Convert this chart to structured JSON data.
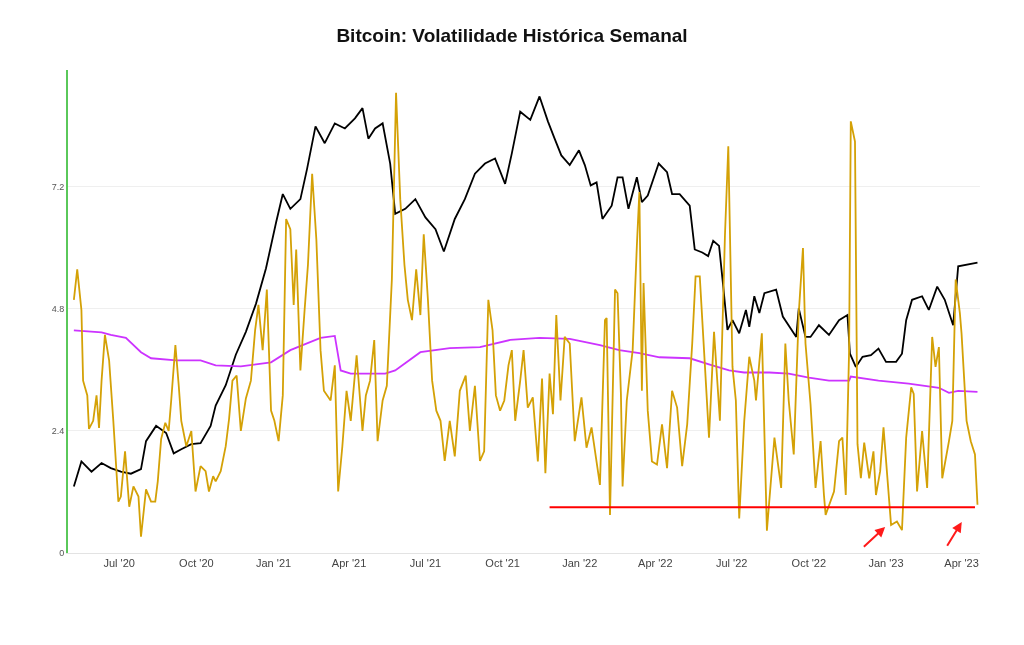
{
  "chart_data": {
    "type": "line",
    "title": "Bitcoin: Volatilidade Histórica Semanal",
    "xlim": [
      "2020-05-01",
      "2023-04-23"
    ],
    "ylim": [
      0,
      9.5
    ],
    "yticks": [
      0,
      2.4,
      4.8,
      7.2
    ],
    "grid": "y",
    "xticks": [
      {
        "value": "2020-07-01",
        "label": "Jul '20"
      },
      {
        "value": "2020-10-01",
        "label": "Oct '20"
      },
      {
        "value": "2021-01-01",
        "label": "Jan '21"
      },
      {
        "value": "2021-04-01",
        "label": "Apr '21"
      },
      {
        "value": "2021-07-01",
        "label": "Jul '21"
      },
      {
        "value": "2021-10-01",
        "label": "Oct '21"
      },
      {
        "value": "2022-01-01",
        "label": "Jan '22"
      },
      {
        "value": "2022-04-01",
        "label": "Apr '22"
      },
      {
        "value": "2022-07-01",
        "label": "Jul '22"
      },
      {
        "value": "2022-10-01",
        "label": "Oct '22"
      },
      {
        "value": "2023-01-01",
        "label": "Jan '23"
      },
      {
        "value": "2023-04-01",
        "label": "Apr '23"
      }
    ],
    "series": [
      {
        "color": "#000000",
        "x": [
          "2020-05-08",
          "2020-05-17",
          "2020-05-29",
          "2020-06-10",
          "2020-06-21",
          "2020-07-03",
          "2020-07-15",
          "2020-07-27",
          "2020-08-02",
          "2020-08-14",
          "2020-08-26",
          "2020-09-04",
          "2020-09-13",
          "2020-09-25",
          "2020-10-06",
          "2020-10-18",
          "2020-10-24",
          "2020-11-05",
          "2020-11-17",
          "2020-11-29",
          "2020-12-11",
          "2020-12-23",
          "2021-01-04",
          "2021-01-12",
          "2021-01-21",
          "2021-02-02",
          "2021-02-10",
          "2021-02-20",
          "2021-03-03",
          "2021-03-15",
          "2021-03-27",
          "2021-04-08",
          "2021-04-17",
          "2021-04-24",
          "2021-05-02",
          "2021-05-11",
          "2021-05-20",
          "2021-05-26",
          "2021-06-07",
          "2021-06-19",
          "2021-07-01",
          "2021-07-13",
          "2021-07-23",
          "2021-08-05",
          "2021-08-17",
          "2021-08-29",
          "2021-09-10",
          "2021-09-22",
          "2021-10-04",
          "2021-10-12",
          "2021-10-22",
          "2021-11-03",
          "2021-11-14",
          "2021-11-24",
          "2021-12-02",
          "2021-12-10",
          "2021-12-20",
          "2021-12-31",
          "2022-01-07",
          "2022-01-14",
          "2022-01-21",
          "2022-01-28",
          "2022-02-08",
          "2022-02-15",
          "2022-02-21",
          "2022-02-28",
          "2022-03-10",
          "2022-03-16",
          "2022-03-23",
          "2022-04-05",
          "2022-04-15",
          "2022-04-21",
          "2022-04-30",
          "2022-05-12",
          "2022-05-18",
          "2022-05-27",
          "2022-06-03",
          "2022-06-09",
          "2022-06-16",
          "2022-06-21",
          "2022-06-26",
          "2022-07-02",
          "2022-07-10",
          "2022-07-18",
          "2022-07-22",
          "2022-07-28",
          "2022-08-03",
          "2022-08-09",
          "2022-08-23",
          "2022-08-31",
          "2022-09-16",
          "2022-09-19",
          "2022-09-27",
          "2022-10-03",
          "2022-10-13",
          "2022-10-25",
          "2022-11-06",
          "2022-11-16",
          "2022-11-19",
          "2022-11-26",
          "2022-12-04",
          "2022-12-14",
          "2022-12-23",
          "2023-01-01",
          "2023-01-13",
          "2023-01-20",
          "2023-01-25",
          "2023-02-01",
          "2023-02-13",
          "2023-02-21",
          "2023-03-03",
          "2023-03-12",
          "2023-03-22",
          "2023-03-28",
          "2023-04-20"
        ],
        "values": [
          1.31,
          1.8,
          1.6,
          1.77,
          1.67,
          1.6,
          1.56,
          1.65,
          2.2,
          2.5,
          2.36,
          1.96,
          2.04,
          2.14,
          2.16,
          2.5,
          2.9,
          3.3,
          3.9,
          4.35,
          4.9,
          5.6,
          6.5,
          7.06,
          6.77,
          6.96,
          7.56,
          8.39,
          8.06,
          8.45,
          8.35,
          8.55,
          8.75,
          8.15,
          8.35,
          8.45,
          7.66,
          6.67,
          6.77,
          6.96,
          6.6,
          6.37,
          5.93,
          6.57,
          6.96,
          7.46,
          7.66,
          7.76,
          7.26,
          7.86,
          8.68,
          8.52,
          8.98,
          8.49,
          8.15,
          7.82,
          7.63,
          7.92,
          7.63,
          7.23,
          7.29,
          6.57,
          6.83,
          7.39,
          7.39,
          6.77,
          7.39,
          6.9,
          7.03,
          7.66,
          7.49,
          7.06,
          7.06,
          6.83,
          5.97,
          5.91,
          5.84,
          6.14,
          6.04,
          5.24,
          4.39,
          4.58,
          4.32,
          4.78,
          4.45,
          5.05,
          4.72,
          5.11,
          5.18,
          4.65,
          4.25,
          4.81,
          4.25,
          4.25,
          4.48,
          4.29,
          4.58,
          4.68,
          3.92,
          3.66,
          3.86,
          3.89,
          4.02,
          3.76,
          3.76,
          3.92,
          4.58,
          4.98,
          5.05,
          4.78,
          5.24,
          4.98,
          4.48,
          5.64,
          5.71
        ]
      },
      {
        "color": "#cc33ff",
        "x": [
          "2020-05-08",
          "2020-06-10",
          "2020-06-21",
          "2020-07-09",
          "2020-07-27",
          "2020-08-08",
          "2020-09-07",
          "2020-10-06",
          "2020-10-24",
          "2020-11-23",
          "2020-12-29",
          "2021-01-21",
          "2021-02-26",
          "2021-03-15",
          "2021-03-22",
          "2021-04-03",
          "2021-05-14",
          "2021-05-26",
          "2021-06-25",
          "2021-07-30",
          "2021-09-04",
          "2021-10-10",
          "2021-11-14",
          "2021-12-20",
          "2022-01-25",
          "2022-02-17",
          "2022-03-13",
          "2022-04-06",
          "2022-05-12",
          "2022-06-04",
          "2022-06-28",
          "2022-07-16",
          "2022-08-15",
          "2022-09-07",
          "2022-10-01",
          "2022-10-25",
          "2022-11-18",
          "2022-11-20",
          "2022-12-23",
          "2023-01-28",
          "2023-03-05",
          "2023-03-17",
          "2023-03-28",
          "2023-04-20"
        ],
        "values": [
          4.38,
          4.34,
          4.29,
          4.23,
          3.95,
          3.83,
          3.79,
          3.79,
          3.69,
          3.67,
          3.75,
          3.99,
          4.23,
          4.27,
          3.59,
          3.53,
          3.53,
          3.59,
          3.95,
          4.03,
          4.05,
          4.19,
          4.23,
          4.21,
          4.09,
          3.99,
          3.93,
          3.85,
          3.83,
          3.71,
          3.59,
          3.55,
          3.55,
          3.53,
          3.45,
          3.39,
          3.39,
          3.47,
          3.39,
          3.33,
          3.25,
          3.15,
          3.19,
          3.17
        ]
      },
      {
        "color": "#d4a106",
        "x": [
          "2020-05-08",
          "2020-05-12",
          "2020-05-17",
          "2020-05-19",
          "2020-05-24",
          "2020-05-26",
          "2020-05-31",
          "2020-06-04",
          "2020-06-07",
          "2020-06-10",
          "2020-06-14",
          "2020-06-19",
          "2020-06-24",
          "2020-06-30",
          "2020-07-03",
          "2020-07-08",
          "2020-07-13",
          "2020-07-18",
          "2020-07-24",
          "2020-07-27",
          "2020-08-02",
          "2020-08-08",
          "2020-08-13",
          "2020-08-16",
          "2020-08-20",
          "2020-08-25",
          "2020-08-29",
          "2020-09-01",
          "2020-09-06",
          "2020-09-10",
          "2020-09-13",
          "2020-09-19",
          "2020-09-25",
          "2020-09-30",
          "2020-10-06",
          "2020-10-12",
          "2020-10-16",
          "2020-10-21",
          "2020-10-24",
          "2020-10-30",
          "2020-11-05",
          "2020-11-09",
          "2020-11-13",
          "2020-11-18",
          "2020-11-23",
          "2020-11-29",
          "2020-12-05",
          "2020-12-10",
          "2020-12-14",
          "2020-12-19",
          "2020-12-24",
          "2020-12-29",
          "2021-01-02",
          "2021-01-07",
          "2021-01-12",
          "2021-01-16",
          "2021-01-21",
          "2021-01-25",
          "2021-01-28",
          "2021-02-02",
          "2021-02-07",
          "2021-02-11",
          "2021-02-16",
          "2021-02-21",
          "2021-02-26",
          "2021-03-02",
          "2021-03-10",
          "2021-03-15",
          "2021-03-19",
          "2021-03-24",
          "2021-03-29",
          "2021-04-03",
          "2021-04-10",
          "2021-04-17",
          "2021-04-21",
          "2021-04-26",
          "2021-05-01",
          "2021-05-05",
          "2021-05-11",
          "2021-05-16",
          "2021-05-22",
          "2021-05-27",
          "2021-06-01",
          "2021-06-06",
          "2021-06-10",
          "2021-06-15",
          "2021-06-20",
          "2021-06-25",
          "2021-06-29",
          "2021-07-04",
          "2021-07-09",
          "2021-07-14",
          "2021-07-19",
          "2021-07-24",
          "2021-07-30",
          "2021-08-05",
          "2021-08-11",
          "2021-08-18",
          "2021-08-23",
          "2021-08-29",
          "2021-09-04",
          "2021-09-09",
          "2021-09-14",
          "2021-09-19",
          "2021-09-23",
          "2021-09-28",
          "2021-10-03",
          "2021-10-08",
          "2021-10-12",
          "2021-10-16",
          "2021-10-22",
          "2021-10-26",
          "2021-10-31",
          "2021-11-06",
          "2021-11-12",
          "2021-11-17",
          "2021-11-21",
          "2021-11-26",
          "2021-11-30",
          "2021-12-04",
          "2021-12-09",
          "2021-12-14",
          "2021-12-20",
          "2021-12-26",
          "2022-01-03",
          "2022-01-09",
          "2022-01-15",
          "2022-01-25",
          "2022-01-31",
          "2022-02-02",
          "2022-02-06",
          "2022-02-12",
          "2022-02-15",
          "2022-02-19",
          "2022-02-21",
          "2022-02-26",
          "2022-03-05",
          "2022-03-10",
          "2022-03-13",
          "2022-03-16",
          "2022-03-18",
          "2022-03-23",
          "2022-03-28",
          "2022-04-03",
          "2022-04-09",
          "2022-04-15",
          "2022-04-21",
          "2022-04-27",
          "2022-05-03",
          "2022-05-09",
          "2022-05-15",
          "2022-05-19",
          "2022-05-24",
          "2022-05-30",
          "2022-06-04",
          "2022-06-10",
          "2022-06-17",
          "2022-06-23",
          "2022-06-27",
          "2022-07-02",
          "2022-07-06",
          "2022-07-10",
          "2022-07-16",
          "2022-07-22",
          "2022-07-28",
          "2022-07-30",
          "2022-08-06",
          "2022-08-12",
          "2022-08-21",
          "2022-08-29",
          "2022-09-03",
          "2022-09-07",
          "2022-09-13",
          "2022-09-19",
          "2022-09-24",
          "2022-09-27",
          "2022-10-03",
          "2022-10-09",
          "2022-10-15",
          "2022-10-19",
          "2022-10-21",
          "2022-10-31",
          "2022-11-06",
          "2022-11-10",
          "2022-11-14",
          "2022-11-18",
          "2022-11-20",
          "2022-11-25",
          "2022-11-28",
          "2022-12-02",
          "2022-12-06",
          "2022-12-12",
          "2022-12-17",
          "2022-12-20",
          "2022-12-25",
          "2022-12-29",
          "2023-01-02",
          "2023-01-07",
          "2023-01-14",
          "2023-01-20",
          "2023-01-25",
          "2023-01-31",
          "2023-02-03",
          "2023-02-07",
          "2023-02-13",
          "2023-02-19",
          "2023-02-25",
          "2023-03-01",
          "2023-03-05",
          "2023-03-09",
          "2023-03-17",
          "2023-03-21",
          "2023-03-25",
          "2023-03-30",
          "2023-04-01",
          "2023-04-07",
          "2023-04-12",
          "2023-04-17",
          "2023-04-20"
        ],
        "values": [
          4.98,
          5.58,
          4.78,
          3.39,
          3.1,
          2.44,
          2.6,
          3.1,
          2.46,
          3.39,
          4.29,
          3.79,
          2.6,
          1.01,
          1.11,
          2.0,
          0.91,
          1.31,
          1.11,
          0.32,
          1.25,
          1.01,
          1.01,
          1.41,
          2.24,
          2.56,
          2.4,
          3.0,
          4.09,
          3.29,
          2.6,
          2.1,
          2.4,
          1.21,
          1.71,
          1.61,
          1.21,
          1.51,
          1.41,
          1.61,
          2.1,
          2.64,
          3.39,
          3.49,
          2.4,
          3.04,
          3.39,
          4.38,
          4.88,
          3.99,
          5.18,
          2.8,
          2.6,
          2.2,
          3.1,
          6.57,
          6.37,
          4.88,
          5.97,
          3.59,
          4.78,
          5.67,
          7.46,
          6.17,
          3.99,
          3.19,
          3.0,
          3.69,
          1.21,
          2.1,
          3.19,
          2.6,
          3.89,
          2.4,
          3.1,
          3.39,
          4.19,
          2.2,
          3.0,
          3.29,
          5.38,
          9.05,
          6.96,
          5.67,
          4.98,
          4.58,
          5.58,
          4.68,
          6.27,
          4.98,
          3.39,
          2.8,
          2.6,
          1.81,
          2.6,
          1.9,
          3.19,
          3.49,
          2.4,
          3.29,
          1.81,
          2.0,
          4.98,
          4.38,
          3.1,
          2.8,
          3.0,
          3.69,
          3.99,
          2.6,
          3.39,
          3.99,
          2.86,
          3.06,
          1.8,
          3.43,
          1.57,
          3.53,
          2.73,
          4.68,
          3.0,
          4.25,
          4.12,
          2.2,
          3.06,
          2.07,
          2.47,
          1.34,
          4.58,
          4.62,
          0.75,
          5.18,
          5.11,
          3.13,
          1.31,
          3.0,
          3.99,
          6.04,
          7.1,
          3.19,
          5.31,
          2.8,
          1.8,
          1.74,
          2.53,
          1.67,
          3.19,
          2.86,
          1.71,
          2.53,
          4.12,
          5.44,
          5.44,
          3.72,
          2.27,
          4.35,
          2.6,
          6.24,
          8.0,
          3.66,
          3.0,
          0.68,
          2.6,
          3.86,
          3.39,
          3.0,
          4.32,
          0.44,
          2.27,
          1.28,
          4.12,
          3.0,
          1.94,
          4.72,
          6.0,
          4.12,
          2.93,
          1.28,
          2.2,
          1.14,
          0.75,
          1.21,
          2.2,
          2.27,
          1.14,
          3.99,
          8.49,
          8.09,
          2.14,
          1.47,
          2.17,
          1.47,
          2.0,
          1.14,
          1.61,
          2.47,
          1.61,
          0.55,
          0.62,
          0.45,
          2.27,
          3.26,
          3.13,
          1.21,
          2.4,
          1.28,
          4.25,
          3.66,
          4.05,
          1.47,
          2.2,
          2.6,
          5.38,
          4.72,
          4.32,
          2.6,
          2.2,
          1.94,
          0.95
        ]
      },
      {
        "color": "#ff0000",
        "x": [
          "2021-11-26",
          "2023-04-17"
        ],
        "values": [
          0.9,
          0.9
        ]
      }
    ]
  }
}
